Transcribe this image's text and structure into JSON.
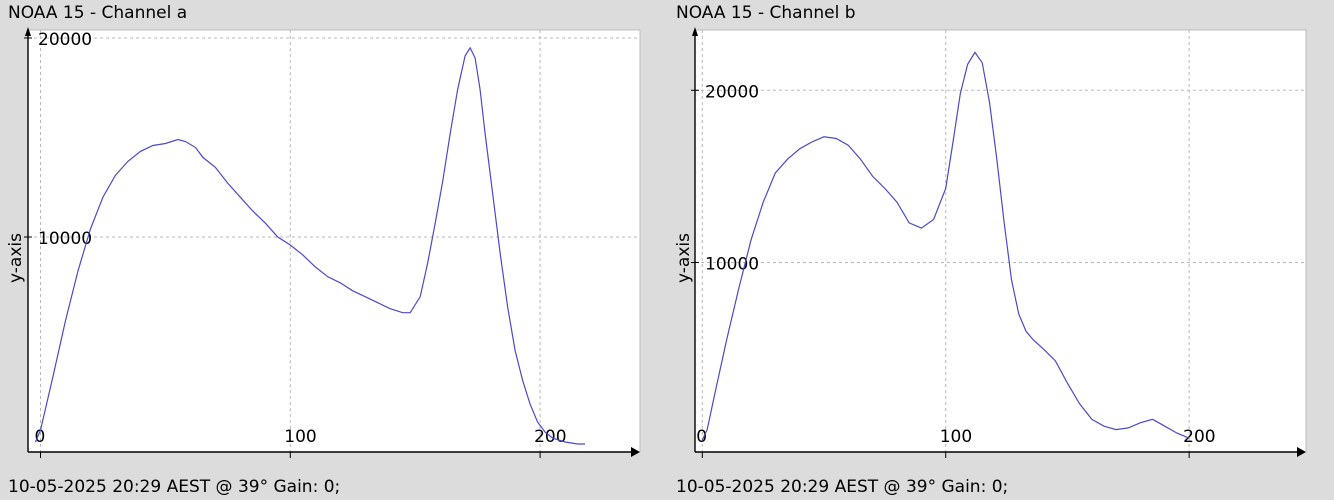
{
  "chart_data": [
    {
      "type": "line",
      "title": "NOAA 15 - Channel a",
      "ylabel": "y-axis",
      "xlabel": "",
      "footer": "10-05-2025 20:29 AEST @ 39° Gain: 0;",
      "xlim": [
        -5,
        240
      ],
      "ylim": [
        -800,
        20400
      ],
      "xticks": [
        0,
        100,
        200
      ],
      "yticks": [
        10000,
        20000
      ],
      "grid": true,
      "color": "#4a4ac8",
      "series": [
        {
          "x": [
            -2,
            0,
            5,
            10,
            15,
            20,
            25,
            30,
            35,
            40,
            45,
            50,
            55,
            58,
            62,
            65,
            70,
            75,
            80,
            85,
            90,
            95,
            100,
            105,
            110,
            115,
            120,
            125,
            130,
            135,
            140,
            145,
            148,
            152,
            155,
            158,
            161,
            164,
            167,
            170,
            172,
            174,
            176,
            178,
            181,
            184,
            187,
            190,
            193,
            196,
            199,
            202,
            205,
            210,
            215,
            218
          ],
          "y": [
            -300,
            300,
            3000,
            5800,
            8300,
            10400,
            12000,
            13100,
            13800,
            14300,
            14600,
            14700,
            14900,
            14800,
            14500,
            14000,
            13500,
            12700,
            12000,
            11300,
            10700,
            10000,
            9600,
            9100,
            8500,
            8000,
            7700,
            7300,
            7000,
            6700,
            6400,
            6200,
            6200,
            7000,
            8700,
            10700,
            12800,
            15200,
            17400,
            19100,
            19500,
            19000,
            17400,
            15200,
            12200,
            9200,
            6500,
            4300,
            2800,
            1600,
            700,
            200,
            -100,
            -300,
            -400,
            -400
          ]
        }
      ]
    },
    {
      "type": "line",
      "title": "NOAA 15 - Channel b",
      "ylabel": "y-axis",
      "xlabel": "",
      "footer": "10-05-2025 20:29 AEST @ 39° Gain: 0;",
      "xlim": [
        -3,
        248
      ],
      "ylim": [
        -1000,
        23500
      ],
      "xticks": [
        0,
        100,
        200
      ],
      "yticks": [
        10000,
        20000
      ],
      "grid": true,
      "color": "#4a4ac8",
      "series": [
        {
          "x": [
            0,
            2,
            5,
            10,
            15,
            20,
            25,
            30,
            35,
            40,
            45,
            50,
            55,
            60,
            65,
            70,
            75,
            80,
            85,
            90,
            95,
            100,
            103,
            106,
            109,
            112,
            115,
            118,
            121,
            124,
            127,
            130,
            133,
            136,
            140,
            145,
            150,
            155,
            160,
            165,
            170,
            175,
            180,
            185,
            190,
            195,
            200
          ],
          "y": [
            -300,
            300,
            2300,
            5500,
            8500,
            11300,
            13500,
            15200,
            16000,
            16600,
            17000,
            17300,
            17200,
            16800,
            16000,
            15000,
            14300,
            13500,
            12300,
            12000,
            12500,
            14300,
            17000,
            19800,
            21500,
            22200,
            21600,
            19300,
            16000,
            12300,
            9000,
            7000,
            6000,
            5500,
            5000,
            4300,
            3000,
            1800,
            900,
            500,
            300,
            400,
            700,
            900,
            500,
            100,
            -200
          ]
        }
      ]
    }
  ]
}
